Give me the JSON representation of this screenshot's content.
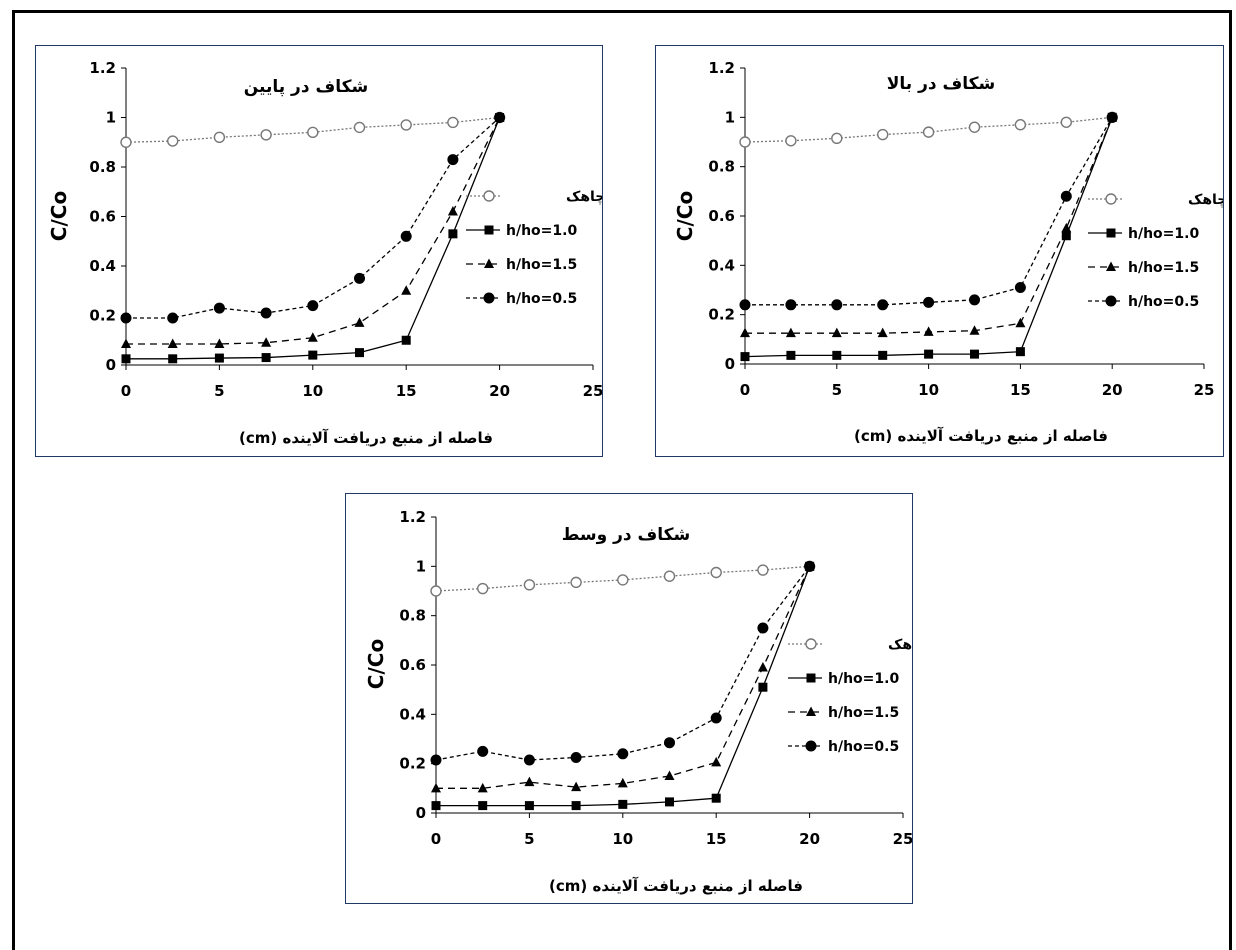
{
  "chart_data": [
    {
      "type": "line",
      "title": "شکاف در پایین",
      "xlabel": "فاصله از منبع دریافت آلاینده (cm)",
      "ylabel": "C/Co",
      "xlim": [
        0,
        25
      ],
      "ylim": [
        0,
        1.2
      ],
      "xticks": [
        "0",
        "5",
        "10",
        "15",
        "20",
        "25"
      ],
      "yticks": [
        "0",
        "0.2",
        "0.4",
        "0.6",
        "0.8",
        "1",
        "1.2"
      ],
      "grid": false,
      "legend_position": "right",
      "series": [
        {
          "name": "بدون چاهک",
          "marker": "open-circle",
          "line": "dotted",
          "x": [
            0,
            2.5,
            5,
            7.5,
            10,
            12.5,
            15,
            17.5,
            20
          ],
          "y": [
            0.9,
            0.905,
            0.92,
            0.93,
            0.94,
            0.96,
            0.97,
            0.98,
            1.0
          ]
        },
        {
          "name": "h/ho=1.0",
          "marker": "square",
          "line": "solid",
          "x": [
            0,
            2.5,
            5,
            7.5,
            10,
            12.5,
            15,
            17.5,
            20
          ],
          "y": [
            0.025,
            0.025,
            0.028,
            0.03,
            0.04,
            0.05,
            0.1,
            0.53,
            1.0
          ]
        },
        {
          "name": "h/ho=1.5",
          "marker": "triangle",
          "line": "dashed",
          "x": [
            0,
            2.5,
            5,
            7.5,
            10,
            12.5,
            15,
            17.5,
            20
          ],
          "y": [
            0.085,
            0.085,
            0.085,
            0.09,
            0.11,
            0.17,
            0.3,
            0.62,
            1.0
          ]
        },
        {
          "name": "h/ho=0.5",
          "marker": "circle",
          "line": "short-dashed",
          "x": [
            0,
            2.5,
            5,
            7.5,
            10,
            12.5,
            15,
            17.5,
            20
          ],
          "y": [
            0.19,
            0.19,
            0.23,
            0.21,
            0.24,
            0.35,
            0.52,
            0.83,
            1.0
          ]
        }
      ]
    },
    {
      "type": "line",
      "title": "شکاف در بالا",
      "xlabel": "فاصله از منبع دریافت آلاینده (cm)",
      "ylabel": "C/Co",
      "xlim": [
        0,
        25
      ],
      "ylim": [
        0,
        1.2
      ],
      "xticks": [
        "0",
        "5",
        "10",
        "15",
        "20",
        "25"
      ],
      "yticks": [
        "0",
        "0.2",
        "0.4",
        "0.6",
        "0.8",
        "1",
        "1.2"
      ],
      "grid": false,
      "legend_position": "right",
      "series": [
        {
          "name": "بدون چاهک",
          "marker": "open-circle",
          "line": "dotted",
          "x": [
            0,
            2.5,
            5,
            7.5,
            10,
            12.5,
            15,
            17.5,
            20
          ],
          "y": [
            0.9,
            0.905,
            0.915,
            0.93,
            0.94,
            0.96,
            0.97,
            0.98,
            1.0
          ]
        },
        {
          "name": "h/ho=1.0",
          "marker": "square",
          "line": "solid",
          "x": [
            0,
            2.5,
            5,
            7.5,
            10,
            12.5,
            15,
            17.5,
            20
          ],
          "y": [
            0.03,
            0.035,
            0.035,
            0.035,
            0.04,
            0.04,
            0.05,
            0.52,
            1.0
          ]
        },
        {
          "name": "h/ho=1.5",
          "marker": "triangle",
          "line": "dashed",
          "x": [
            0,
            2.5,
            5,
            7.5,
            10,
            12.5,
            15,
            17.5,
            20
          ],
          "y": [
            0.125,
            0.125,
            0.125,
            0.125,
            0.13,
            0.135,
            0.165,
            0.55,
            1.0
          ]
        },
        {
          "name": "h/ho=0.5",
          "marker": "circle",
          "line": "short-dashed",
          "x": [
            0,
            2.5,
            5,
            7.5,
            10,
            12.5,
            15,
            17.5,
            20
          ],
          "y": [
            0.24,
            0.24,
            0.24,
            0.24,
            0.25,
            0.26,
            0.31,
            0.68,
            1.0
          ]
        }
      ]
    },
    {
      "type": "line",
      "title": "شکاف در وسط",
      "xlabel": "فاصله از منبع دریافت آلاینده (cm)",
      "ylabel": "C/Co",
      "xlim": [
        0,
        25
      ],
      "ylim": [
        0,
        1.2
      ],
      "xticks": [
        "0",
        "5",
        "10",
        "15",
        "20",
        "25"
      ],
      "yticks": [
        "0",
        "0.2",
        "0.4",
        "0.6",
        "0.8",
        "1",
        "1.2"
      ],
      "grid": false,
      "legend_position": "right",
      "series": [
        {
          "name": "بدون چاهک",
          "marker": "open-circle",
          "line": "dotted",
          "x": [
            0,
            2.5,
            5,
            7.5,
            10,
            12.5,
            15,
            17.5,
            20
          ],
          "y": [
            0.9,
            0.91,
            0.925,
            0.935,
            0.945,
            0.96,
            0.975,
            0.985,
            1.0
          ]
        },
        {
          "name": "h/ho=1.0",
          "marker": "square",
          "line": "solid",
          "x": [
            0,
            2.5,
            5,
            7.5,
            10,
            12.5,
            15,
            17.5,
            20
          ],
          "y": [
            0.03,
            0.03,
            0.03,
            0.03,
            0.035,
            0.045,
            0.06,
            0.51,
            1.0
          ]
        },
        {
          "name": "h/ho=1.5",
          "marker": "triangle",
          "line": "dashed",
          "x": [
            0,
            2.5,
            5,
            7.5,
            10,
            12.5,
            15,
            17.5,
            20
          ],
          "y": [
            0.1,
            0.1,
            0.125,
            0.105,
            0.12,
            0.15,
            0.205,
            0.59,
            1.0
          ]
        },
        {
          "name": "h/ho=0.5",
          "marker": "circle",
          "line": "short-dashed",
          "x": [
            0,
            2.5,
            5,
            7.5,
            10,
            12.5,
            15,
            17.5,
            20
          ],
          "y": [
            0.215,
            0.25,
            0.215,
            0.225,
            0.24,
            0.285,
            0.385,
            0.75,
            1.0
          ]
        }
      ]
    }
  ]
}
